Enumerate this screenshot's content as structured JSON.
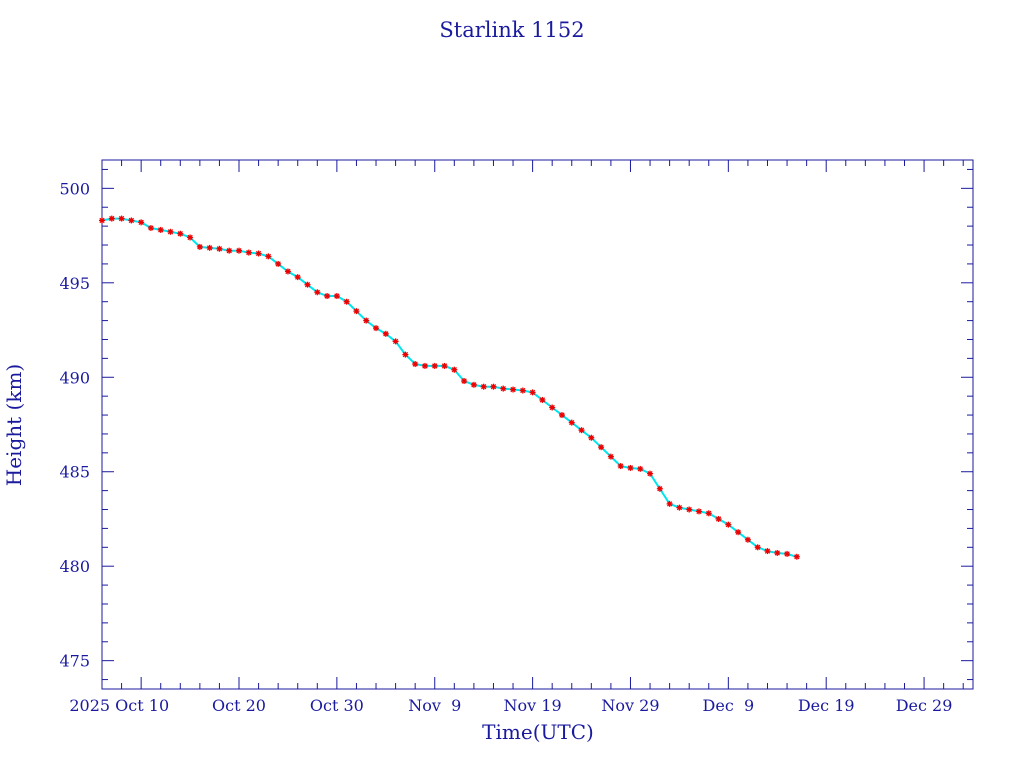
{
  "chart_data": {
    "type": "scatter",
    "title": "Starlink 1152",
    "xlabel": "Time(UTC)",
    "ylabel": "Height (km)",
    "x_range": [
      "2025-10-06",
      "2026-01-03"
    ],
    "ylim": [
      473.5,
      501.5
    ],
    "x_ticks": [
      {
        "date": "2025-10-10",
        "label": "2025 Oct 10"
      },
      {
        "date": "2025-10-20",
        "label": "Oct 20"
      },
      {
        "date": "2025-10-30",
        "label": "Oct 30"
      },
      {
        "date": "2025-11-09",
        "label": "Nov  9"
      },
      {
        "date": "2025-11-19",
        "label": "Nov 19"
      },
      {
        "date": "2025-11-29",
        "label": "Nov 29"
      },
      {
        "date": "2025-12-09",
        "label": "Dec  9"
      },
      {
        "date": "2025-12-19",
        "label": "Dec 19"
      },
      {
        "date": "2025-12-29",
        "label": "Dec 29"
      }
    ],
    "y_ticks": [
      475,
      480,
      485,
      490,
      495,
      500
    ],
    "grid": false,
    "colors": {
      "axis": "#1a1a9e",
      "line": "#00e5ee",
      "marker": "#ee0000"
    },
    "series": [
      {
        "x": [
          "2025-10-06",
          "2025-10-07",
          "2025-10-08",
          "2025-10-09",
          "2025-10-10",
          "2025-10-11",
          "2025-10-12",
          "2025-10-13",
          "2025-10-14",
          "2025-10-15",
          "2025-10-16",
          "2025-10-17",
          "2025-10-18",
          "2025-10-19",
          "2025-10-20",
          "2025-10-21",
          "2025-10-22",
          "2025-10-23",
          "2025-10-24",
          "2025-10-25",
          "2025-10-26",
          "2025-10-27",
          "2025-10-28",
          "2025-10-29",
          "2025-10-30",
          "2025-10-31",
          "2025-11-01",
          "2025-11-02",
          "2025-11-03",
          "2025-11-04",
          "2025-11-05",
          "2025-11-06",
          "2025-11-07",
          "2025-11-08",
          "2025-11-09",
          "2025-11-10",
          "2025-11-11",
          "2025-11-12",
          "2025-11-13",
          "2025-11-14",
          "2025-11-15",
          "2025-11-16",
          "2025-11-17",
          "2025-11-18",
          "2025-11-19",
          "2025-11-20",
          "2025-11-21",
          "2025-11-22",
          "2025-11-23",
          "2025-11-24",
          "2025-11-25",
          "2025-11-26",
          "2025-11-27",
          "2025-11-28",
          "2025-11-29",
          "2025-11-30",
          "2025-12-01",
          "2025-12-02",
          "2025-12-03",
          "2025-12-04",
          "2025-12-05",
          "2025-12-06",
          "2025-12-07",
          "2025-12-08",
          "2025-12-09",
          "2025-12-10",
          "2025-12-11",
          "2025-12-12",
          "2025-12-13",
          "2025-12-14",
          "2025-12-15",
          "2025-12-16"
        ],
        "y": [
          498.3,
          498.4,
          498.4,
          498.3,
          498.2,
          497.9,
          497.8,
          497.7,
          497.6,
          497.4,
          496.9,
          496.85,
          496.8,
          496.7,
          496.7,
          496.6,
          496.55,
          496.4,
          496.0,
          495.6,
          495.3,
          494.9,
          494.5,
          494.3,
          494.3,
          494.0,
          493.5,
          493.0,
          492.6,
          492.3,
          491.9,
          491.2,
          490.7,
          490.6,
          490.6,
          490.6,
          490.4,
          489.8,
          489.6,
          489.5,
          489.5,
          489.4,
          489.35,
          489.3,
          489.2,
          488.8,
          488.4,
          488.0,
          487.6,
          487.2,
          486.8,
          486.3,
          485.8,
          485.3,
          485.2,
          485.15,
          484.9,
          484.1,
          483.3,
          483.1,
          483.0,
          482.9,
          482.8,
          482.5,
          482.2,
          481.8,
          481.4,
          481.0,
          480.8,
          480.7,
          480.65,
          480.5
        ]
      }
    ]
  }
}
